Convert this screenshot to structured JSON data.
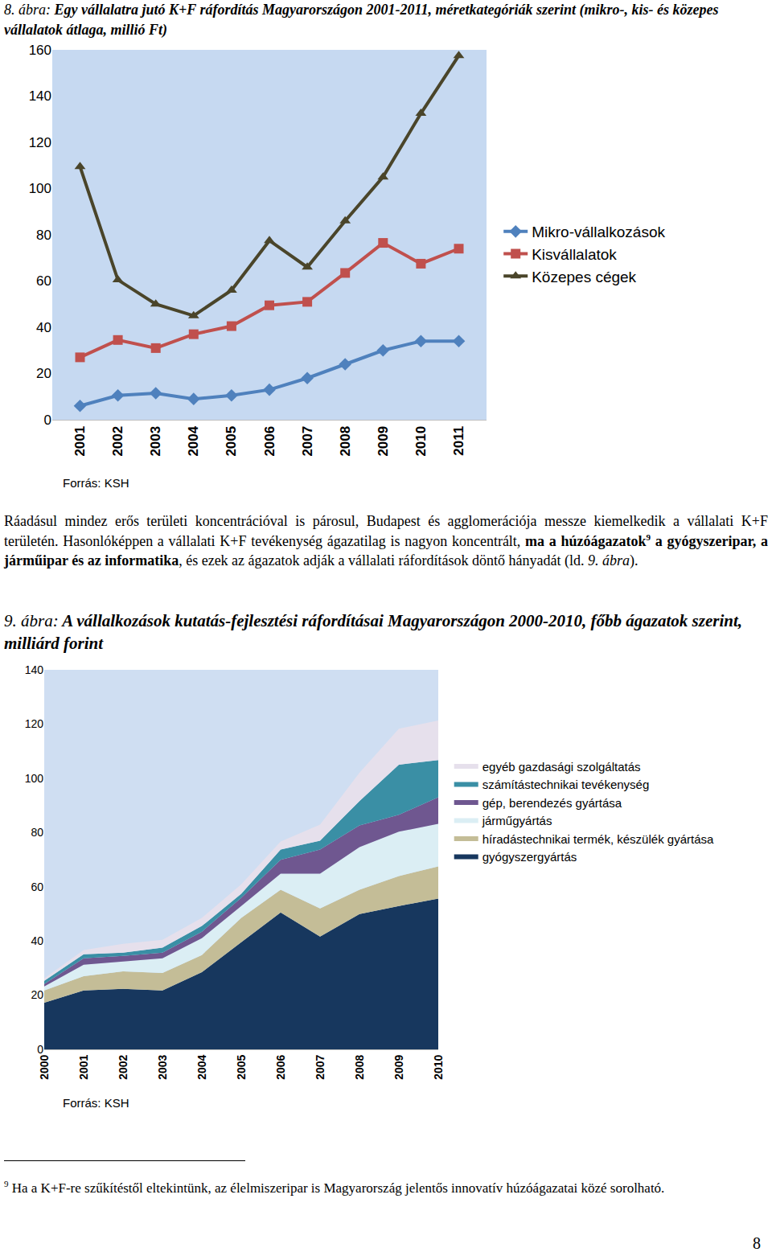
{
  "chart_data": [
    {
      "type": "line",
      "title": "8. ábra: Egy vállalatra jutó K+F ráfordítás Magyarországon 2001-2011, méretkategóriák szerint (mikro-, kis- és közepes vállalatok átlaga, millió Ft)",
      "categories": [
        "2001",
        "2002",
        "2003",
        "2004",
        "2005",
        "2006",
        "2007",
        "2008",
        "2009",
        "2010",
        "2011"
      ],
      "series": [
        {
          "name": "Mikro-vállalkozások",
          "color": "#4f81bd",
          "marker": "diamond",
          "values": [
            6,
            10.5,
            11.5,
            9,
            10.5,
            13,
            18,
            24,
            30,
            34,
            34
          ]
        },
        {
          "name": "Kisvállalatok",
          "color": "#c0504d",
          "marker": "square",
          "values": [
            27,
            34.5,
            31,
            37,
            40.5,
            49.5,
            51,
            63.5,
            76.5,
            67.5,
            74
          ]
        },
        {
          "name": "Közepes cégek",
          "color": "#4a452a",
          "marker": "triangle",
          "values": [
            109.5,
            60.5,
            50,
            45,
            56,
            77.5,
            66,
            86,
            105,
            132.5,
            157.5
          ]
        }
      ],
      "ylim": [
        0,
        160
      ],
      "yticks": [
        0,
        20,
        40,
        60,
        80,
        100,
        120,
        140,
        160
      ],
      "grid": false,
      "legend": "right",
      "annotations": [
        "Forrás: KSH"
      ]
    },
    {
      "type": "area",
      "title": "9. ábra: A vállalkozások kutatás-fejlesztési ráfordításai Magyarországon 2000-2010, főbb ágazatok szerint, milliárd forint",
      "categories": [
        "2000",
        "2001",
        "2002",
        "2003",
        "2004",
        "2005",
        "2006",
        "2007",
        "2008",
        "2009",
        "2010"
      ],
      "stacked": true,
      "series": [
        {
          "name": "gyógyszergyártás",
          "color": "#17375e",
          "values": [
            17.2,
            21.7,
            22.3,
            21.7,
            28.5,
            39.5,
            50.5,
            41.6,
            49.9,
            52.9,
            55.6
          ]
        },
        {
          "name": "híradástechnikai termék, készülék gyártása",
          "color": "#c4bd97",
          "values": [
            4.5,
            5.3,
            6.5,
            6.5,
            6.3,
            9.0,
            8.4,
            10.4,
            9.0,
            11.0,
            11.9
          ]
        },
        {
          "name": "járműgyártás",
          "color": "#dbeef4",
          "values": [
            1.5,
            4.2,
            3.6,
            5.4,
            6.2,
            4.4,
            5.9,
            12.8,
            15.7,
            16.4,
            15.7
          ]
        },
        {
          "name": "gép, berendezés gyártása",
          "color": "#6f5790",
          "values": [
            0.9,
            2.4,
            2.1,
            2.1,
            2.4,
            3.0,
            5.1,
            8.9,
            8.0,
            6.2,
            9.8
          ]
        },
        {
          "name": "számítástechnikai tevékenység",
          "color": "#3a8fa5",
          "values": [
            1.2,
            1.5,
            1.2,
            1.8,
            2.1,
            1.5,
            3.8,
            3.3,
            9.0,
            18.5,
            13.7
          ]
        },
        {
          "name": "egyéb gazdasági szolgáltatás",
          "color": "#e6e0ec",
          "values": [
            0.9,
            1.5,
            3.2,
            2.9,
            3.0,
            3.5,
            3.0,
            5.9,
            10.4,
            13.3,
            14.6
          ]
        }
      ],
      "ylim": [
        0,
        140
      ],
      "yticks": [
        0,
        20,
        40,
        60,
        80,
        100,
        120,
        140
      ],
      "grid": false,
      "legend": "right",
      "annotations": [
        "Forrás: KSH"
      ]
    }
  ],
  "document": {
    "paragraph": [
      {
        "text": "Ráadásul mindez erős területi koncentrációval is párosul, Budapest és agglomerációja messze kiemelkedik a vállalati K+F területén. Hasonlóképpen a vállalati K+F tevékenység ágazatilag is nagyon koncentrált, ",
        "style": "normal"
      },
      {
        "text": "ma a húzóágazatok",
        "style": "bold"
      },
      {
        "text": "9",
        "style": "sup"
      },
      {
        "text": " a gyógyszeripar, a járműipar és az informatika",
        "style": "bold"
      },
      {
        "text": ", és ezek az ágazatok adják a vállalati ráfordítások döntő hányadát (ld. ",
        "style": "normal"
      },
      {
        "text": "9. ábra",
        "style": "italic"
      },
      {
        "text": ").",
        "style": "normal"
      }
    ],
    "footnote": {
      "mark": "9",
      "text": "Ha a K+F-re szűkítéstől eltekintünk, az élelmiszeripar is Magyarország jelentős innovatív húzóágazatai közé sorolható."
    },
    "page_number": "8"
  }
}
